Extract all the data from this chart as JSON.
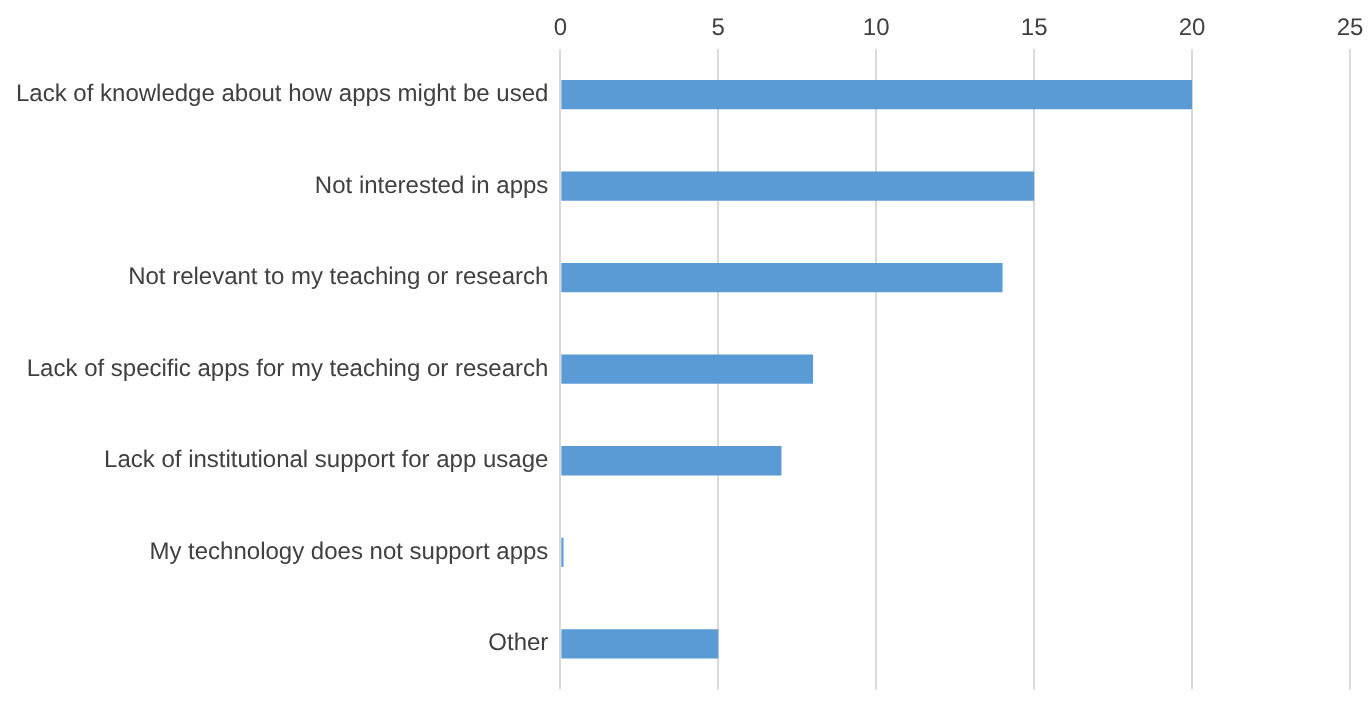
{
  "chart_data": {
    "type": "bar",
    "orientation": "horizontal",
    "categories": [
      "Lack of knowledge about how apps might be used",
      "Not interested in apps",
      "Not relevant to my teaching or research",
      "Lack of specific apps for my teaching or research",
      "Lack of institutional support for app usage",
      "My technology does not support apps",
      "Other"
    ],
    "values": [
      20,
      15,
      14,
      8,
      7,
      0.1,
      5
    ],
    "color": "#5b9bd5",
    "xlim": [
      0,
      25
    ],
    "xticks": [
      0,
      5,
      10,
      15,
      20,
      25
    ],
    "grid": "x",
    "legend": false
  }
}
